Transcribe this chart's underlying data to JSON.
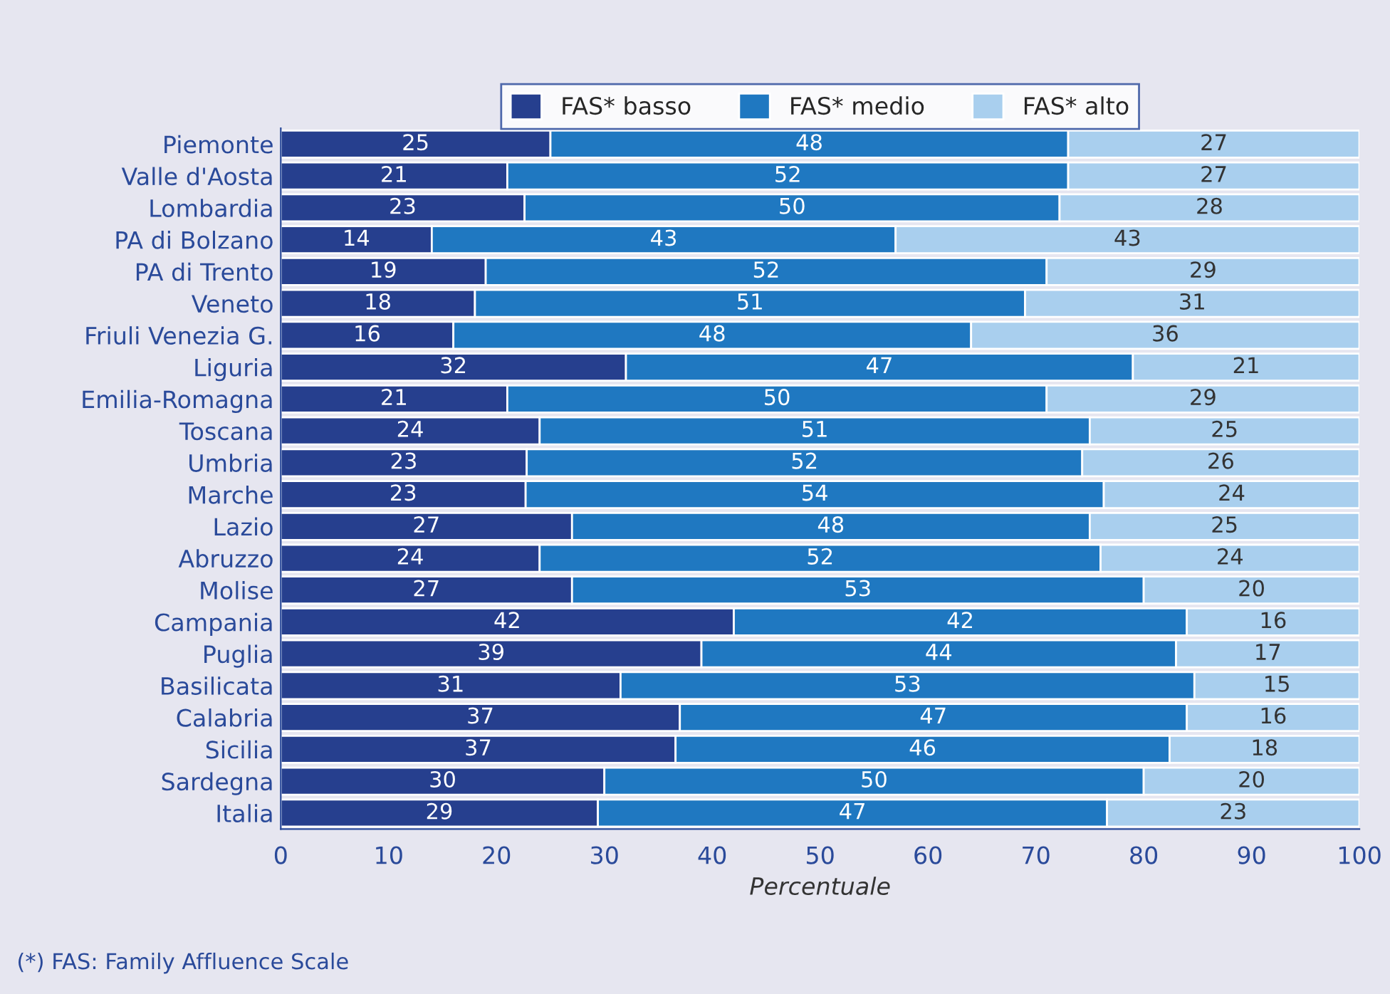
{
  "chart_data": {
    "type": "bar",
    "orientation": "horizontal",
    "stacked": true,
    "xlabel": "Percentuale",
    "categories": [
      "Piemonte",
      "Valle d'Aosta",
      "Lombardia",
      "PA di Bolzano",
      "PA di Trento",
      "Veneto",
      "Friuli Venezia G.",
      "Liguria",
      "Emilia-Romagna",
      "Toscana",
      "Umbria",
      "Marche",
      "Lazio",
      "Abruzzo",
      "Molise",
      "Campania",
      "Puglia",
      "Basilicata",
      "Calabria",
      "Sicilia",
      "Sardegna",
      "Italia"
    ],
    "series": [
      {
        "name": "FAS* basso",
        "color": "#263f8e",
        "values": [
          25,
          21,
          22.6,
          14,
          19,
          18,
          16,
          32,
          21,
          24,
          22.8,
          22.7,
          27,
          24,
          27,
          42,
          39,
          31.5,
          37,
          36.6,
          30,
          29.4
        ],
        "value_labels": [
          "25",
          "21",
          "23",
          "14",
          "19",
          "18",
          "16",
          "32",
          "21",
          "24",
          "23",
          "23",
          "27",
          "24",
          "27",
          "42",
          "39",
          "31",
          "37",
          "37",
          "30",
          "29"
        ]
      },
      {
        "name": "FAS* medio",
        "color": "#1f78c1",
        "values": [
          48,
          52,
          49.6,
          43,
          52,
          51,
          48,
          47,
          50,
          51,
          51.5,
          53.6,
          48,
          52,
          53,
          42,
          44,
          53.2,
          47,
          45.8,
          50,
          47.2
        ],
        "value_labels": [
          "48",
          "52",
          "50",
          "43",
          "52",
          "51",
          "48",
          "47",
          "50",
          "51",
          "52",
          "54",
          "48",
          "52",
          "53",
          "42",
          "44",
          "53",
          "47",
          "46",
          "50",
          "47"
        ]
      },
      {
        "name": "FAS* alto",
        "color": "#a9cfee",
        "values": [
          27,
          27,
          27.8,
          43,
          29,
          31,
          36,
          21,
          29,
          25,
          25.7,
          23.7,
          25,
          24,
          20,
          16,
          17,
          15.3,
          16,
          17.6,
          20,
          23.4
        ],
        "value_labels": [
          "27",
          "27",
          "28",
          "43",
          "29",
          "31",
          "36",
          "21",
          "29",
          "25",
          "26",
          "24",
          "25",
          "24",
          "20",
          "16",
          "17",
          "15",
          "16",
          "18",
          "20",
          "23"
        ]
      }
    ],
    "xlim": [
      0,
      100
    ],
    "xticks": [
      0,
      10,
      20,
      30,
      40,
      50,
      60,
      70,
      80,
      90,
      100
    ],
    "legend": "top",
    "grid": false,
    "annotations": [
      "(*) FAS: Family Affluence Scale"
    ]
  }
}
